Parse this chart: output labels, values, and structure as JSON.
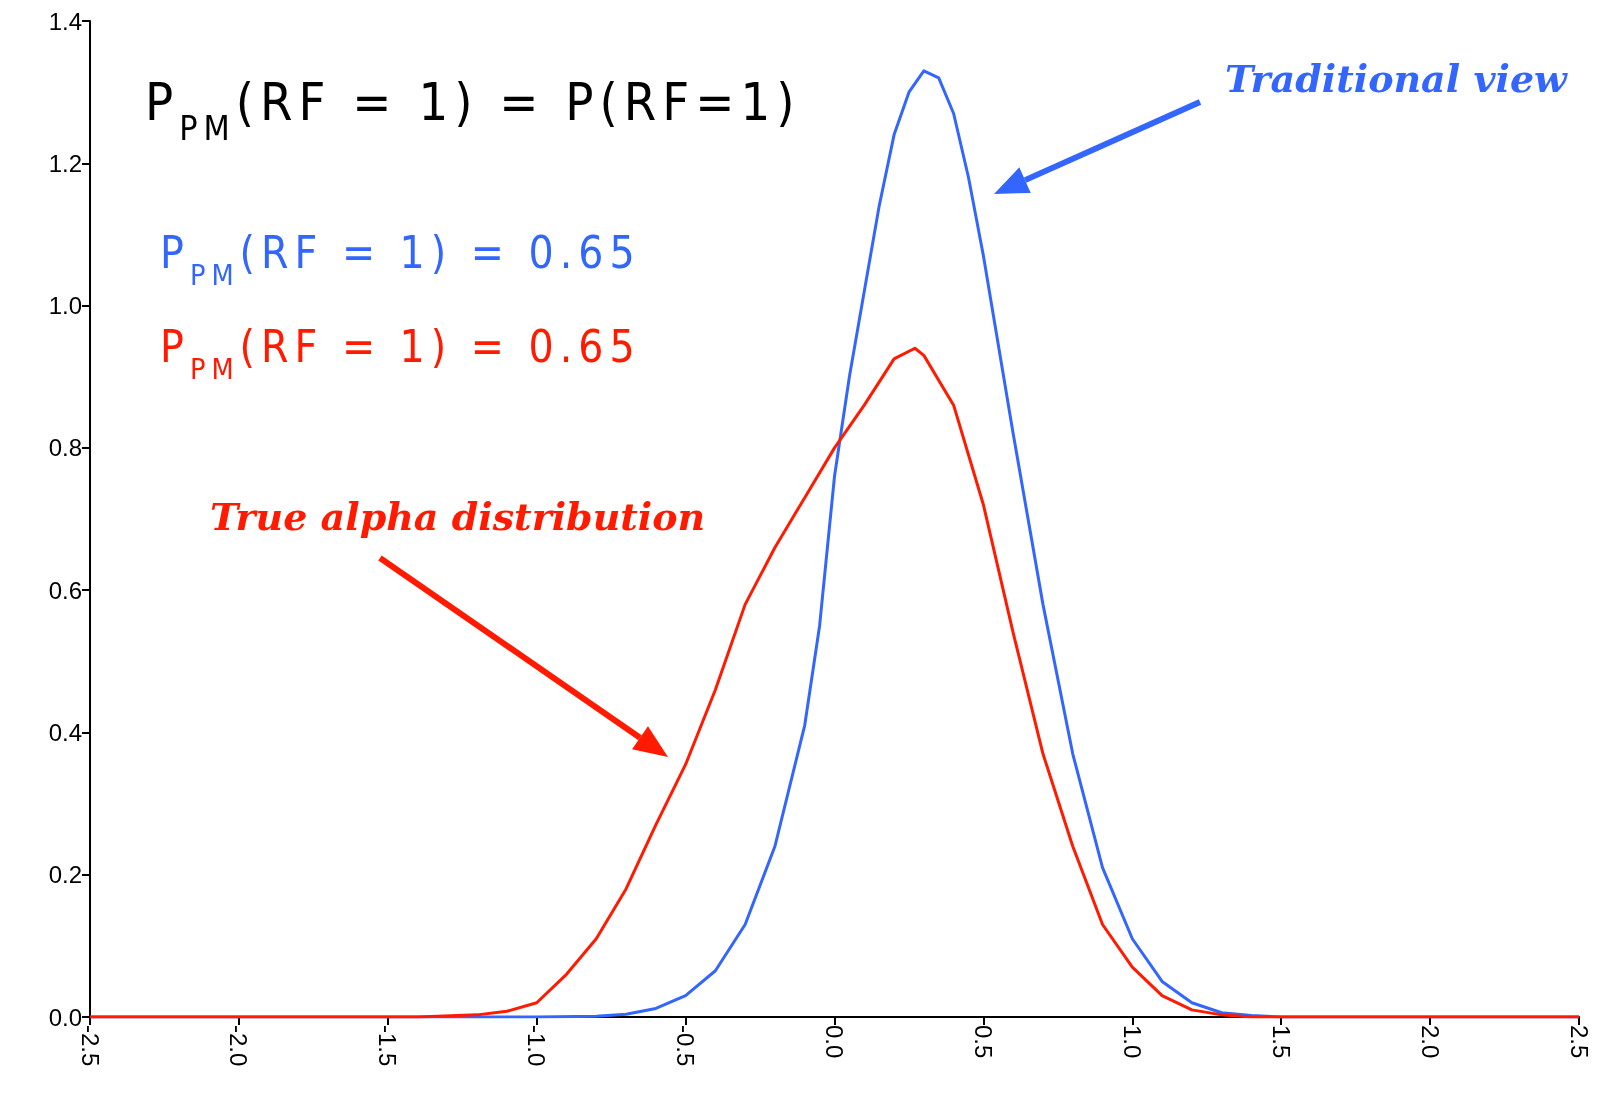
{
  "chart_data": {
    "type": "line",
    "xlim": [
      -2.5,
      2.5
    ],
    "ylim": [
      0,
      1.4
    ],
    "xticks": [
      -2.5,
      {
        "value": -2,
        "label": "-2.0"
      },
      -1.5,
      {
        "value": -1,
        "label": "-1.0"
      },
      -0.5,
      {
        "value": 0,
        "label": "0.0"
      },
      0.5,
      {
        "value": 1,
        "label": "1.0"
      },
      1.5,
      {
        "value": 2,
        "label": "2.0"
      },
      2.5
    ],
    "yticks": [
      {
        "value": 0,
        "label": "0.0"
      },
      0.2,
      0.4,
      0.6,
      0.8,
      {
        "value": 1,
        "label": "1.0"
      },
      1.2,
      1.4
    ],
    "grid": false,
    "marker": "none",
    "line_style": "solid",
    "series": [
      {
        "color": "#3366ff",
        "x": [
          -2.5,
          -1.0,
          -0.8,
          -0.7,
          -0.6,
          -0.5,
          -0.4,
          -0.3,
          -0.2,
          -0.1,
          -0.05,
          0,
          0.05,
          0.1,
          0.15,
          0.2,
          0.25,
          0.3,
          0.35,
          0.4,
          0.45,
          0.5,
          0.6,
          0.7,
          0.8,
          0.9,
          1.0,
          1.1,
          1.2,
          1.3,
          1.4,
          1.5,
          2.5
        ],
        "values": [
          0,
          0,
          0.001,
          0.004,
          0.012,
          0.03,
          0.065,
          0.13,
          0.24,
          0.41,
          0.55,
          0.76,
          0.9,
          1.02,
          1.14,
          1.24,
          1.3,
          1.33,
          1.32,
          1.27,
          1.18,
          1.07,
          0.82,
          0.58,
          0.37,
          0.21,
          0.11,
          0.05,
          0.02,
          0.006,
          0.002,
          0,
          0
        ]
      },
      {
        "color": "#ff1a00",
        "x": [
          -2.5,
          -1.4,
          -1.2,
          -1.1,
          -1.0,
          -0.9,
          -0.8,
          -0.7,
          -0.6,
          -0.5,
          -0.4,
          -0.3,
          -0.2,
          -0.1,
          0,
          0.1,
          0.2,
          0.27,
          0.3,
          0.4,
          0.5,
          0.6,
          0.7,
          0.8,
          0.9,
          1.0,
          1.1,
          1.2,
          1.3,
          1.4,
          2.5
        ],
        "values": [
          0,
          0,
          0.003,
          0.008,
          0.02,
          0.06,
          0.11,
          0.18,
          0.27,
          0.355,
          0.46,
          0.58,
          0.66,
          0.73,
          0.8,
          0.86,
          0.925,
          0.94,
          0.93,
          0.86,
          0.72,
          0.54,
          0.37,
          0.24,
          0.13,
          0.07,
          0.03,
          0.01,
          0.003,
          0,
          0
        ]
      }
    ],
    "annotations": [
      "P$_{PM}$(RF = 1) = P(RF=1)",
      "P$_{PM}$(RF = 1) = 0.65",
      "P$_{PM}$(RF = 1) = 0.65",
      "Traditional view",
      "True alpha distribution"
    ]
  }
}
